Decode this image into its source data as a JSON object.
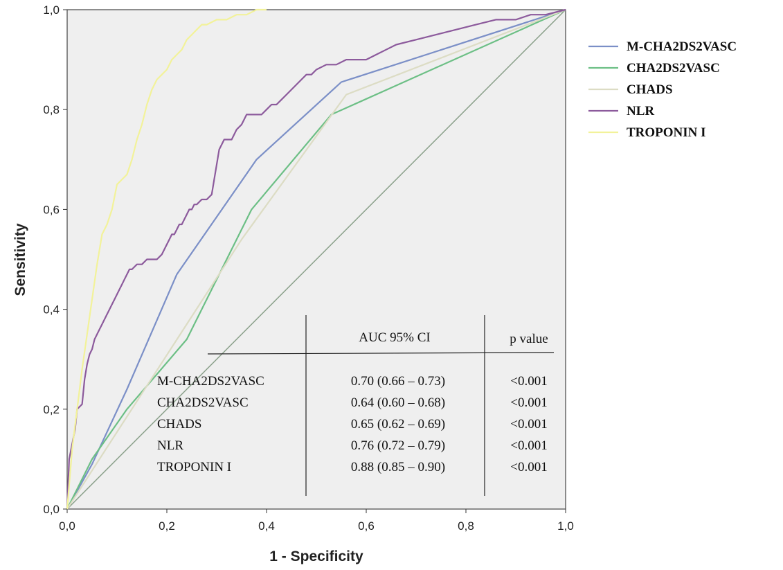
{
  "chart_data": {
    "type": "line",
    "title": "",
    "xlabel": "1 - Specificity",
    "ylabel": "Sensitivity",
    "xlim": [
      0,
      1
    ],
    "ylim": [
      0,
      1
    ],
    "xticks": [
      "0,0",
      "0,2",
      "0,4",
      "0,6",
      "0,8",
      "1,0"
    ],
    "yticks": [
      "0,0",
      "0,2",
      "0,4",
      "0,6",
      "0,8",
      "1,0"
    ],
    "grid": false,
    "legend_position": "right",
    "background": "#efefef",
    "series": [
      {
        "name": "M-CHA2DS2VASC",
        "color": "#7b8fc7",
        "x": [
          0,
          0.05,
          0.12,
          0.22,
          0.38,
          0.55,
          1.0
        ],
        "y": [
          0,
          0.09,
          0.24,
          0.47,
          0.7,
          0.855,
          1.0
        ]
      },
      {
        "name": "CHA2DS2VASC",
        "color": "#6cbf85",
        "x": [
          0,
          0.05,
          0.12,
          0.24,
          0.37,
          0.53,
          1.0
        ],
        "y": [
          0,
          0.1,
          0.2,
          0.34,
          0.6,
          0.79,
          1.0
        ]
      },
      {
        "name": "CHADS",
        "color": "#dcdcc4",
        "x": [
          0,
          0.35,
          0.56,
          1.0
        ],
        "y": [
          0,
          0.54,
          0.83,
          1.0
        ]
      },
      {
        "name": "NLR",
        "color": "#8c5a9c",
        "x": [
          0,
          0.004,
          0.008,
          0.012,
          0.016,
          0.02,
          0.03,
          0.035,
          0.04,
          0.045,
          0.05,
          0.055,
          0.06,
          0.065,
          0.07,
          0.075,
          0.08,
          0.085,
          0.09,
          0.095,
          0.1,
          0.105,
          0.11,
          0.115,
          0.12,
          0.125,
          0.13,
          0.14,
          0.15,
          0.16,
          0.17,
          0.18,
          0.19,
          0.2,
          0.205,
          0.21,
          0.215,
          0.22,
          0.225,
          0.23,
          0.235,
          0.24,
          0.245,
          0.25,
          0.255,
          0.26,
          0.27,
          0.28,
          0.29,
          0.295,
          0.3,
          0.305,
          0.31,
          0.315,
          0.32,
          0.325,
          0.33,
          0.34,
          0.35,
          0.355,
          0.36,
          0.365,
          0.37,
          0.38,
          0.39,
          0.4,
          0.41,
          0.42,
          0.43,
          0.44,
          0.45,
          0.46,
          0.47,
          0.48,
          0.49,
          0.5,
          0.52,
          0.54,
          0.56,
          0.6,
          0.62,
          0.64,
          0.66,
          0.7,
          0.74,
          0.78,
          0.82,
          0.86,
          0.9,
          0.93,
          0.96,
          1.0
        ],
        "y": [
          0,
          0.1,
          0.12,
          0.14,
          0.16,
          0.2,
          0.21,
          0.26,
          0.29,
          0.31,
          0.32,
          0.34,
          0.35,
          0.36,
          0.37,
          0.38,
          0.39,
          0.4,
          0.41,
          0.42,
          0.43,
          0.44,
          0.45,
          0.46,
          0.47,
          0.48,
          0.48,
          0.49,
          0.49,
          0.5,
          0.5,
          0.5,
          0.51,
          0.53,
          0.54,
          0.55,
          0.55,
          0.56,
          0.57,
          0.57,
          0.58,
          0.59,
          0.6,
          0.6,
          0.61,
          0.61,
          0.62,
          0.62,
          0.63,
          0.66,
          0.69,
          0.72,
          0.73,
          0.74,
          0.74,
          0.74,
          0.74,
          0.76,
          0.77,
          0.78,
          0.79,
          0.79,
          0.79,
          0.79,
          0.79,
          0.8,
          0.81,
          0.81,
          0.82,
          0.83,
          0.84,
          0.85,
          0.86,
          0.87,
          0.87,
          0.88,
          0.89,
          0.89,
          0.9,
          0.9,
          0.91,
          0.92,
          0.93,
          0.94,
          0.95,
          0.96,
          0.97,
          0.98,
          0.98,
          0.99,
          0.99,
          1.0
        ]
      },
      {
        "name": "TROPONIN I",
        "color": "#f2f29a",
        "x": [
          0,
          0.01,
          0.02,
          0.03,
          0.04,
          0.05,
          0.06,
          0.07,
          0.08,
          0.09,
          0.1,
          0.11,
          0.12,
          0.13,
          0.14,
          0.15,
          0.16,
          0.17,
          0.18,
          0.19,
          0.2,
          0.21,
          0.22,
          0.23,
          0.24,
          0.25,
          0.26,
          0.27,
          0.28,
          0.3,
          0.32,
          0.34,
          0.36,
          0.38,
          0.4
        ],
        "y": [
          0,
          0.12,
          0.2,
          0.28,
          0.35,
          0.42,
          0.49,
          0.55,
          0.57,
          0.6,
          0.65,
          0.66,
          0.67,
          0.7,
          0.74,
          0.77,
          0.81,
          0.84,
          0.86,
          0.87,
          0.88,
          0.9,
          0.91,
          0.92,
          0.94,
          0.95,
          0.96,
          0.97,
          0.97,
          0.98,
          0.98,
          0.99,
          0.99,
          1.0,
          1.0
        ]
      }
    ]
  },
  "diagonal_color": "#8aa08a",
  "auc_table": {
    "headers": [
      "AUC 95% CI",
      "p value"
    ],
    "rows": [
      {
        "label": "M-CHA2DS2VASC",
        "auc": "0.70 (0.66 – 0.73)",
        "p": "<0.001"
      },
      {
        "label": "CHA2DS2VASC",
        "auc": "0.64 (0.60 – 0.68)",
        "p": "<0.001"
      },
      {
        "label": "CHADS",
        "auc": "0.65 (0.62 – 0.69)",
        "p": "<0.001"
      },
      {
        "label": "NLR",
        "auc": "0.76 (0.72 – 0.79)",
        "p": "<0.001"
      },
      {
        "label": "TROPONIN I",
        "auc": "0.88 (0.85 – 0.90)",
        "p": "<0.001"
      }
    ]
  }
}
